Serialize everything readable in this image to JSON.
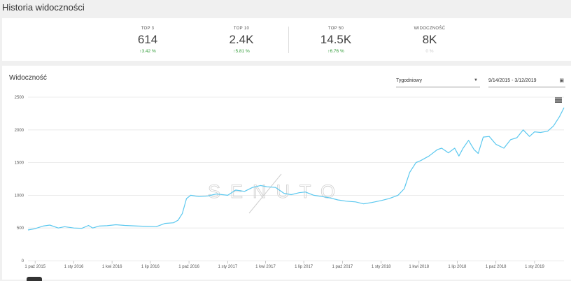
{
  "page": {
    "title": "Historia widoczności"
  },
  "stats": [
    {
      "label": "TOP 3",
      "value": "614",
      "change": "3.42 %",
      "direction": "up"
    },
    {
      "label": "TOP 10",
      "value": "2.4K",
      "change": "5.81 %",
      "direction": "up"
    },
    {
      "label": "TOP 50",
      "value": "14.5K",
      "change": "6.76 %",
      "direction": "up"
    },
    {
      "label": "WIDOCZNOŚĆ",
      "value": "8K",
      "change": "0 %",
      "direction": "neutral"
    }
  ],
  "chart_panel": {
    "title": "Widoczność",
    "period": "Tygodniowy",
    "date_range": "9/14/2015 - 3/12/2019",
    "menu_icon": "hamburger-icon",
    "calendar_icon": "calendar-icon",
    "watermark": "SENUTO"
  },
  "colors": {
    "line": "#5bc8ef",
    "up": "#2e9a35",
    "grid": "#e6e6e6"
  },
  "chart_data": {
    "type": "line",
    "title": "",
    "xlabel": "",
    "ylabel": "",
    "ylim": [
      0,
      2500
    ],
    "yticks": [
      0,
      500,
      1000,
      1500,
      2000,
      2500
    ],
    "xlim": [
      "2015-09-14",
      "2019-03-12"
    ],
    "xtick_labels": [
      "1 paź 2015",
      "1 sty 2016",
      "1 kwi 2016",
      "1 lip 2016",
      "1 paź 2016",
      "1 sty 2017",
      "1 kwi 2017",
      "1 lip 2017",
      "1 paź 2017",
      "1 sty 2018",
      "1 kwi 2018",
      "1 lip 2018",
      "1 paź 2018",
      "1 sty 2019"
    ],
    "xtick_dates": [
      "2015-10-01",
      "2016-01-01",
      "2016-04-01",
      "2016-07-01",
      "2016-10-01",
      "2017-01-01",
      "2017-04-01",
      "2017-07-01",
      "2017-10-01",
      "2018-01-01",
      "2018-04-01",
      "2018-07-01",
      "2018-10-01",
      "2019-01-01"
    ],
    "grid": true,
    "series": [
      {
        "x": [
          "2015-09-14",
          "2015-10-01",
          "2015-10-20",
          "2015-11-05",
          "2015-11-25",
          "2015-12-10",
          "2016-01-01",
          "2016-01-20",
          "2016-02-05",
          "2016-02-15",
          "2016-03-01",
          "2016-03-20",
          "2016-04-10",
          "2016-05-01",
          "2016-06-01",
          "2016-06-25",
          "2016-07-15",
          "2016-08-05",
          "2016-08-25",
          "2016-09-05",
          "2016-09-15",
          "2016-09-25",
          "2016-10-05",
          "2016-10-25",
          "2016-11-15",
          "2016-12-05",
          "2017-01-01",
          "2017-01-20",
          "2017-02-10",
          "2017-03-01",
          "2017-03-20",
          "2017-04-05",
          "2017-04-25",
          "2017-05-15",
          "2017-06-01",
          "2017-06-20",
          "2017-07-05",
          "2017-07-25",
          "2017-08-15",
          "2017-09-01",
          "2017-09-20",
          "2017-10-10",
          "2017-11-01",
          "2017-11-20",
          "2017-12-10",
          "2018-01-01",
          "2018-01-20",
          "2018-02-10",
          "2018-02-25",
          "2018-03-10",
          "2018-03-25",
          "2018-04-05",
          "2018-04-25",
          "2018-05-15",
          "2018-05-25",
          "2018-06-10",
          "2018-06-25",
          "2018-07-05",
          "2018-07-15",
          "2018-07-28",
          "2018-08-10",
          "2018-08-20",
          "2018-09-01",
          "2018-09-15",
          "2018-10-01",
          "2018-10-20",
          "2018-11-05",
          "2018-11-20",
          "2018-12-05",
          "2018-12-20",
          "2019-01-01",
          "2019-01-15",
          "2019-02-01",
          "2019-02-15",
          "2019-03-01",
          "2019-03-12"
        ],
        "values": [
          470,
          490,
          530,
          545,
          500,
          520,
          500,
          495,
          540,
          500,
          530,
          535,
          550,
          540,
          530,
          525,
          520,
          570,
          580,
          620,
          720,
          950,
          1000,
          980,
          990,
          1020,
          1000,
          1080,
          1060,
          1120,
          1150,
          1130,
          1120,
          1030,
          1010,
          1040,
          1050,
          1000,
          980,
          960,
          930,
          910,
          900,
          870,
          890,
          920,
          950,
          1000,
          1100,
          1350,
          1500,
          1530,
          1600,
          1700,
          1720,
          1650,
          1720,
          1600,
          1720,
          1840,
          1700,
          1640,
          1890,
          1900,
          1780,
          1720,
          1850,
          1880,
          2000,
          1900,
          1970,
          1960,
          1980,
          2060,
          2200,
          2340
        ]
      }
    ]
  }
}
